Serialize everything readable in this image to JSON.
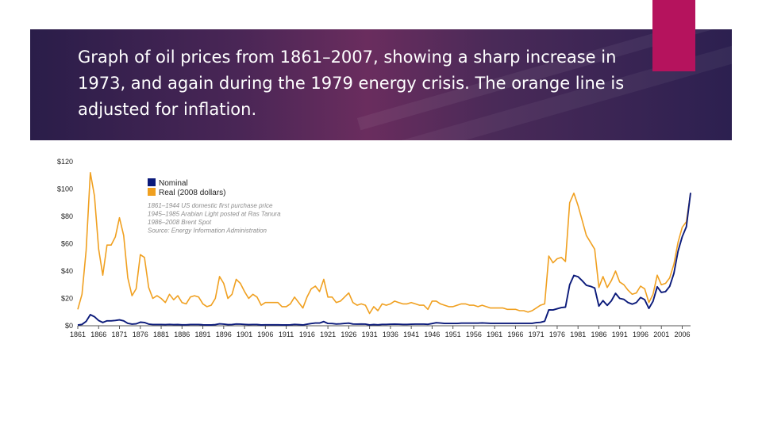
{
  "slide": {
    "title": "Graph of oil prices from 1861–2007, showing a sharp increase in 1973, and again during the 1979 energy crisis. The orange line is adjusted for inflation.",
    "colors": {
      "banner_dark": "#2a1d49",
      "banner_mid": "#6a2d5e",
      "accent": "#b5135d"
    }
  },
  "chart_data": {
    "type": "line",
    "xlim": [
      1861,
      2008
    ],
    "ylim": [
      0,
      120
    ],
    "grid": false,
    "legend_position": "top-left",
    "x_ticks": [
      "1861",
      "1866",
      "1871",
      "1876",
      "1881",
      "1886",
      "1891",
      "1896",
      "1901",
      "1906",
      "1911",
      "1916",
      "1921",
      "1926",
      "1931",
      "1936",
      "1941",
      "1946",
      "1951",
      "1956",
      "1961",
      "1966",
      "1971",
      "1976",
      "1981",
      "1986",
      "1991",
      "1996",
      "2001",
      "2006"
    ],
    "y_ticks": [
      {
        "value": 0,
        "label": "$0"
      },
      {
        "value": 20,
        "label": "$20"
      },
      {
        "value": 40,
        "label": "$40"
      },
      {
        "value": 60,
        "label": "$60"
      },
      {
        "value": 80,
        "label": "$80"
      },
      {
        "value": 100,
        "label": "$100"
      },
      {
        "value": 120,
        "label": "$120"
      }
    ],
    "notes": [
      "1861–1944 US domestic first purchase price",
      "1945–1985 Arabian Light posted at Ras Tanura",
      "1986–2008 Brent Spot",
      "Source: Energy Information Administration"
    ],
    "series": [
      {
        "name": "Nominal",
        "color": "#0b1a7a",
        "points": [
          [
            1861,
            0.5
          ],
          [
            1862,
            1.0
          ],
          [
            1863,
            3.2
          ],
          [
            1864,
            8.1
          ],
          [
            1865,
            6.6
          ],
          [
            1866,
            3.8
          ],
          [
            1867,
            2.4
          ],
          [
            1868,
            3.6
          ],
          [
            1869,
            3.6
          ],
          [
            1870,
            3.9
          ],
          [
            1871,
            4.3
          ],
          [
            1872,
            3.6
          ],
          [
            1873,
            1.8
          ],
          [
            1874,
            1.2
          ],
          [
            1875,
            1.4
          ],
          [
            1876,
            2.6
          ],
          [
            1877,
            2.4
          ],
          [
            1878,
            1.2
          ],
          [
            1879,
            0.9
          ],
          [
            1880,
            0.95
          ],
          [
            1881,
            0.9
          ],
          [
            1882,
            0.8
          ],
          [
            1883,
            1.0
          ],
          [
            1884,
            0.8
          ],
          [
            1885,
            0.9
          ],
          [
            1886,
            0.7
          ],
          [
            1887,
            0.7
          ],
          [
            1888,
            0.9
          ],
          [
            1889,
            0.9
          ],
          [
            1890,
            0.9
          ],
          [
            1891,
            0.7
          ],
          [
            1892,
            0.6
          ],
          [
            1893,
            0.6
          ],
          [
            1894,
            0.8
          ],
          [
            1895,
            1.4
          ],
          [
            1896,
            1.2
          ],
          [
            1897,
            0.8
          ],
          [
            1898,
            0.9
          ],
          [
            1899,
            1.3
          ],
          [
            1900,
            1.2
          ],
          [
            1901,
            1.0
          ],
          [
            1902,
            0.8
          ],
          [
            1903,
            0.9
          ],
          [
            1904,
            0.9
          ],
          [
            1905,
            0.6
          ],
          [
            1906,
            0.7
          ],
          [
            1907,
            0.7
          ],
          [
            1908,
            0.7
          ],
          [
            1909,
            0.7
          ],
          [
            1910,
            0.6
          ],
          [
            1911,
            0.6
          ],
          [
            1912,
            0.7
          ],
          [
            1913,
            1.0
          ],
          [
            1914,
            0.8
          ],
          [
            1915,
            0.6
          ],
          [
            1916,
            1.1
          ],
          [
            1917,
            1.6
          ],
          [
            1918,
            2.0
          ],
          [
            1919,
            2.0
          ],
          [
            1920,
            3.1
          ],
          [
            1921,
            1.7
          ],
          [
            1922,
            1.6
          ],
          [
            1923,
            1.3
          ],
          [
            1924,
            1.4
          ],
          [
            1925,
            1.7
          ],
          [
            1926,
            1.9
          ],
          [
            1927,
            1.3
          ],
          [
            1928,
            1.2
          ],
          [
            1929,
            1.3
          ],
          [
            1930,
            1.2
          ],
          [
            1931,
            0.65
          ],
          [
            1932,
            0.9
          ],
          [
            1933,
            0.7
          ],
          [
            1934,
            1.0
          ],
          [
            1935,
            1.0
          ],
          [
            1936,
            1.1
          ],
          [
            1937,
            1.2
          ],
          [
            1938,
            1.1
          ],
          [
            1939,
            1.0
          ],
          [
            1940,
            1.0
          ],
          [
            1941,
            1.1
          ],
          [
            1942,
            1.2
          ],
          [
            1943,
            1.2
          ],
          [
            1944,
            1.2
          ],
          [
            1945,
            1.05
          ],
          [
            1946,
            1.6
          ],
          [
            1947,
            2.2
          ],
          [
            1948,
            2.0
          ],
          [
            1949,
            1.7
          ],
          [
            1950,
            1.71
          ],
          [
            1951,
            1.71
          ],
          [
            1952,
            1.71
          ],
          [
            1953,
            1.93
          ],
          [
            1954,
            1.93
          ],
          [
            1955,
            1.93
          ],
          [
            1956,
            1.93
          ],
          [
            1957,
            1.9
          ],
          [
            1958,
            2.08
          ],
          [
            1959,
            1.9
          ],
          [
            1960,
            1.8
          ],
          [
            1961,
            1.8
          ],
          [
            1962,
            1.8
          ],
          [
            1963,
            1.8
          ],
          [
            1964,
            1.8
          ],
          [
            1965,
            1.8
          ],
          [
            1966,
            1.8
          ],
          [
            1967,
            1.8
          ],
          [
            1968,
            1.8
          ],
          [
            1969,
            1.8
          ],
          [
            1970,
            1.8
          ],
          [
            1971,
            2.24
          ],
          [
            1972,
            2.48
          ],
          [
            1973,
            3.29
          ],
          [
            1974,
            11.58
          ],
          [
            1975,
            11.53
          ],
          [
            1976,
            12.38
          ],
          [
            1977,
            13.3
          ],
          [
            1978,
            13.6
          ],
          [
            1979,
            30.0
          ],
          [
            1980,
            36.8
          ],
          [
            1981,
            35.9
          ],
          [
            1982,
            32.9
          ],
          [
            1983,
            29.6
          ],
          [
            1984,
            28.8
          ],
          [
            1985,
            27.6
          ],
          [
            1986,
            14.4
          ],
          [
            1987,
            18.4
          ],
          [
            1988,
            14.9
          ],
          [
            1989,
            18.2
          ],
          [
            1990,
            23.7
          ],
          [
            1991,
            20.0
          ],
          [
            1992,
            19.3
          ],
          [
            1993,
            17.0
          ],
          [
            1994,
            15.8
          ],
          [
            1995,
            17.0
          ],
          [
            1996,
            20.7
          ],
          [
            1997,
            19.1
          ],
          [
            1998,
            12.7
          ],
          [
            1999,
            17.9
          ],
          [
            2000,
            28.5
          ],
          [
            2001,
            24.4
          ],
          [
            2002,
            25.0
          ],
          [
            2003,
            28.8
          ],
          [
            2004,
            38.3
          ],
          [
            2005,
            54.5
          ],
          [
            2006,
            65.1
          ],
          [
            2007,
            72.4
          ],
          [
            2008,
            97.3
          ]
        ]
      },
      {
        "name": "Real (2008 dollars)",
        "color": "#f0a020",
        "points": [
          [
            1861,
            12
          ],
          [
            1862,
            23
          ],
          [
            1863,
            55
          ],
          [
            1864,
            112
          ],
          [
            1865,
            95
          ],
          [
            1866,
            56
          ],
          [
            1867,
            37
          ],
          [
            1868,
            59
          ],
          [
            1869,
            59
          ],
          [
            1870,
            65
          ],
          [
            1871,
            79
          ],
          [
            1872,
            66
          ],
          [
            1873,
            35
          ],
          [
            1874,
            22
          ],
          [
            1875,
            27
          ],
          [
            1876,
            52
          ],
          [
            1877,
            50
          ],
          [
            1878,
            28
          ],
          [
            1879,
            20
          ],
          [
            1880,
            22
          ],
          [
            1881,
            20
          ],
          [
            1882,
            17
          ],
          [
            1883,
            23
          ],
          [
            1884,
            19
          ],
          [
            1885,
            22
          ],
          [
            1886,
            17
          ],
          [
            1887,
            16
          ],
          [
            1888,
            21
          ],
          [
            1889,
            22
          ],
          [
            1890,
            21
          ],
          [
            1891,
            16
          ],
          [
            1892,
            14
          ],
          [
            1893,
            15
          ],
          [
            1894,
            20
          ],
          [
            1895,
            36
          ],
          [
            1896,
            31
          ],
          [
            1897,
            20
          ],
          [
            1898,
            23
          ],
          [
            1899,
            34
          ],
          [
            1900,
            31
          ],
          [
            1901,
            25
          ],
          [
            1902,
            20
          ],
          [
            1903,
            23
          ],
          [
            1904,
            21
          ],
          [
            1905,
            15
          ],
          [
            1906,
            17
          ],
          [
            1907,
            17
          ],
          [
            1908,
            17
          ],
          [
            1909,
            17
          ],
          [
            1910,
            14
          ],
          [
            1911,
            14
          ],
          [
            1912,
            16
          ],
          [
            1913,
            21
          ],
          [
            1914,
            17
          ],
          [
            1915,
            13
          ],
          [
            1916,
            21
          ],
          [
            1917,
            27
          ],
          [
            1918,
            29
          ],
          [
            1919,
            25
          ],
          [
            1920,
            34
          ],
          [
            1921,
            21
          ],
          [
            1922,
            21
          ],
          [
            1923,
            17
          ],
          [
            1924,
            18
          ],
          [
            1925,
            21
          ],
          [
            1926,
            24
          ],
          [
            1927,
            17
          ],
          [
            1928,
            15
          ],
          [
            1929,
            16
          ],
          [
            1930,
            15
          ],
          [
            1931,
            9
          ],
          [
            1932,
            14
          ],
          [
            1933,
            11
          ],
          [
            1934,
            16
          ],
          [
            1935,
            15
          ],
          [
            1936,
            16
          ],
          [
            1937,
            18
          ],
          [
            1938,
            17
          ],
          [
            1939,
            16
          ],
          [
            1940,
            16
          ],
          [
            1941,
            17
          ],
          [
            1942,
            16
          ],
          [
            1943,
            15
          ],
          [
            1944,
            15
          ],
          [
            1945,
            12
          ],
          [
            1946,
            18
          ],
          [
            1947,
            18
          ],
          [
            1948,
            16
          ],
          [
            1949,
            15
          ],
          [
            1950,
            14
          ],
          [
            1951,
            14
          ],
          [
            1952,
            15
          ],
          [
            1953,
            16
          ],
          [
            1954,
            16
          ],
          [
            1955,
            15
          ],
          [
            1956,
            15
          ],
          [
            1957,
            14
          ],
          [
            1958,
            15
          ],
          [
            1959,
            14
          ],
          [
            1960,
            13
          ],
          [
            1961,
            13
          ],
          [
            1962,
            13
          ],
          [
            1963,
            13
          ],
          [
            1964,
            12
          ],
          [
            1965,
            12
          ],
          [
            1966,
            12
          ],
          [
            1967,
            11
          ],
          [
            1968,
            11
          ],
          [
            1969,
            10
          ],
          [
            1970,
            11
          ],
          [
            1971,
            13
          ],
          [
            1972,
            15
          ],
          [
            1973,
            16
          ],
          [
            1974,
            51
          ],
          [
            1975,
            46
          ],
          [
            1976,
            49
          ],
          [
            1977,
            50
          ],
          [
            1978,
            47
          ],
          [
            1979,
            90
          ],
          [
            1980,
            97
          ],
          [
            1981,
            88
          ],
          [
            1982,
            77
          ],
          [
            1983,
            66
          ],
          [
            1984,
            61
          ],
          [
            1985,
            56
          ],
          [
            1986,
            28
          ],
          [
            1987,
            36
          ],
          [
            1988,
            28
          ],
          [
            1989,
            33
          ],
          [
            1990,
            40
          ],
          [
            1991,
            32
          ],
          [
            1992,
            30
          ],
          [
            1993,
            26
          ],
          [
            1994,
            23
          ],
          [
            1995,
            24
          ],
          [
            1996,
            29
          ],
          [
            1997,
            27
          ],
          [
            1998,
            17
          ],
          [
            1999,
            23
          ],
          [
            2000,
            37
          ],
          [
            2001,
            30
          ],
          [
            2002,
            31
          ],
          [
            2003,
            35
          ],
          [
            2004,
            45
          ],
          [
            2005,
            61
          ],
          [
            2006,
            72
          ],
          [
            2007,
            76
          ],
          [
            2008,
            97
          ]
        ]
      }
    ]
  }
}
